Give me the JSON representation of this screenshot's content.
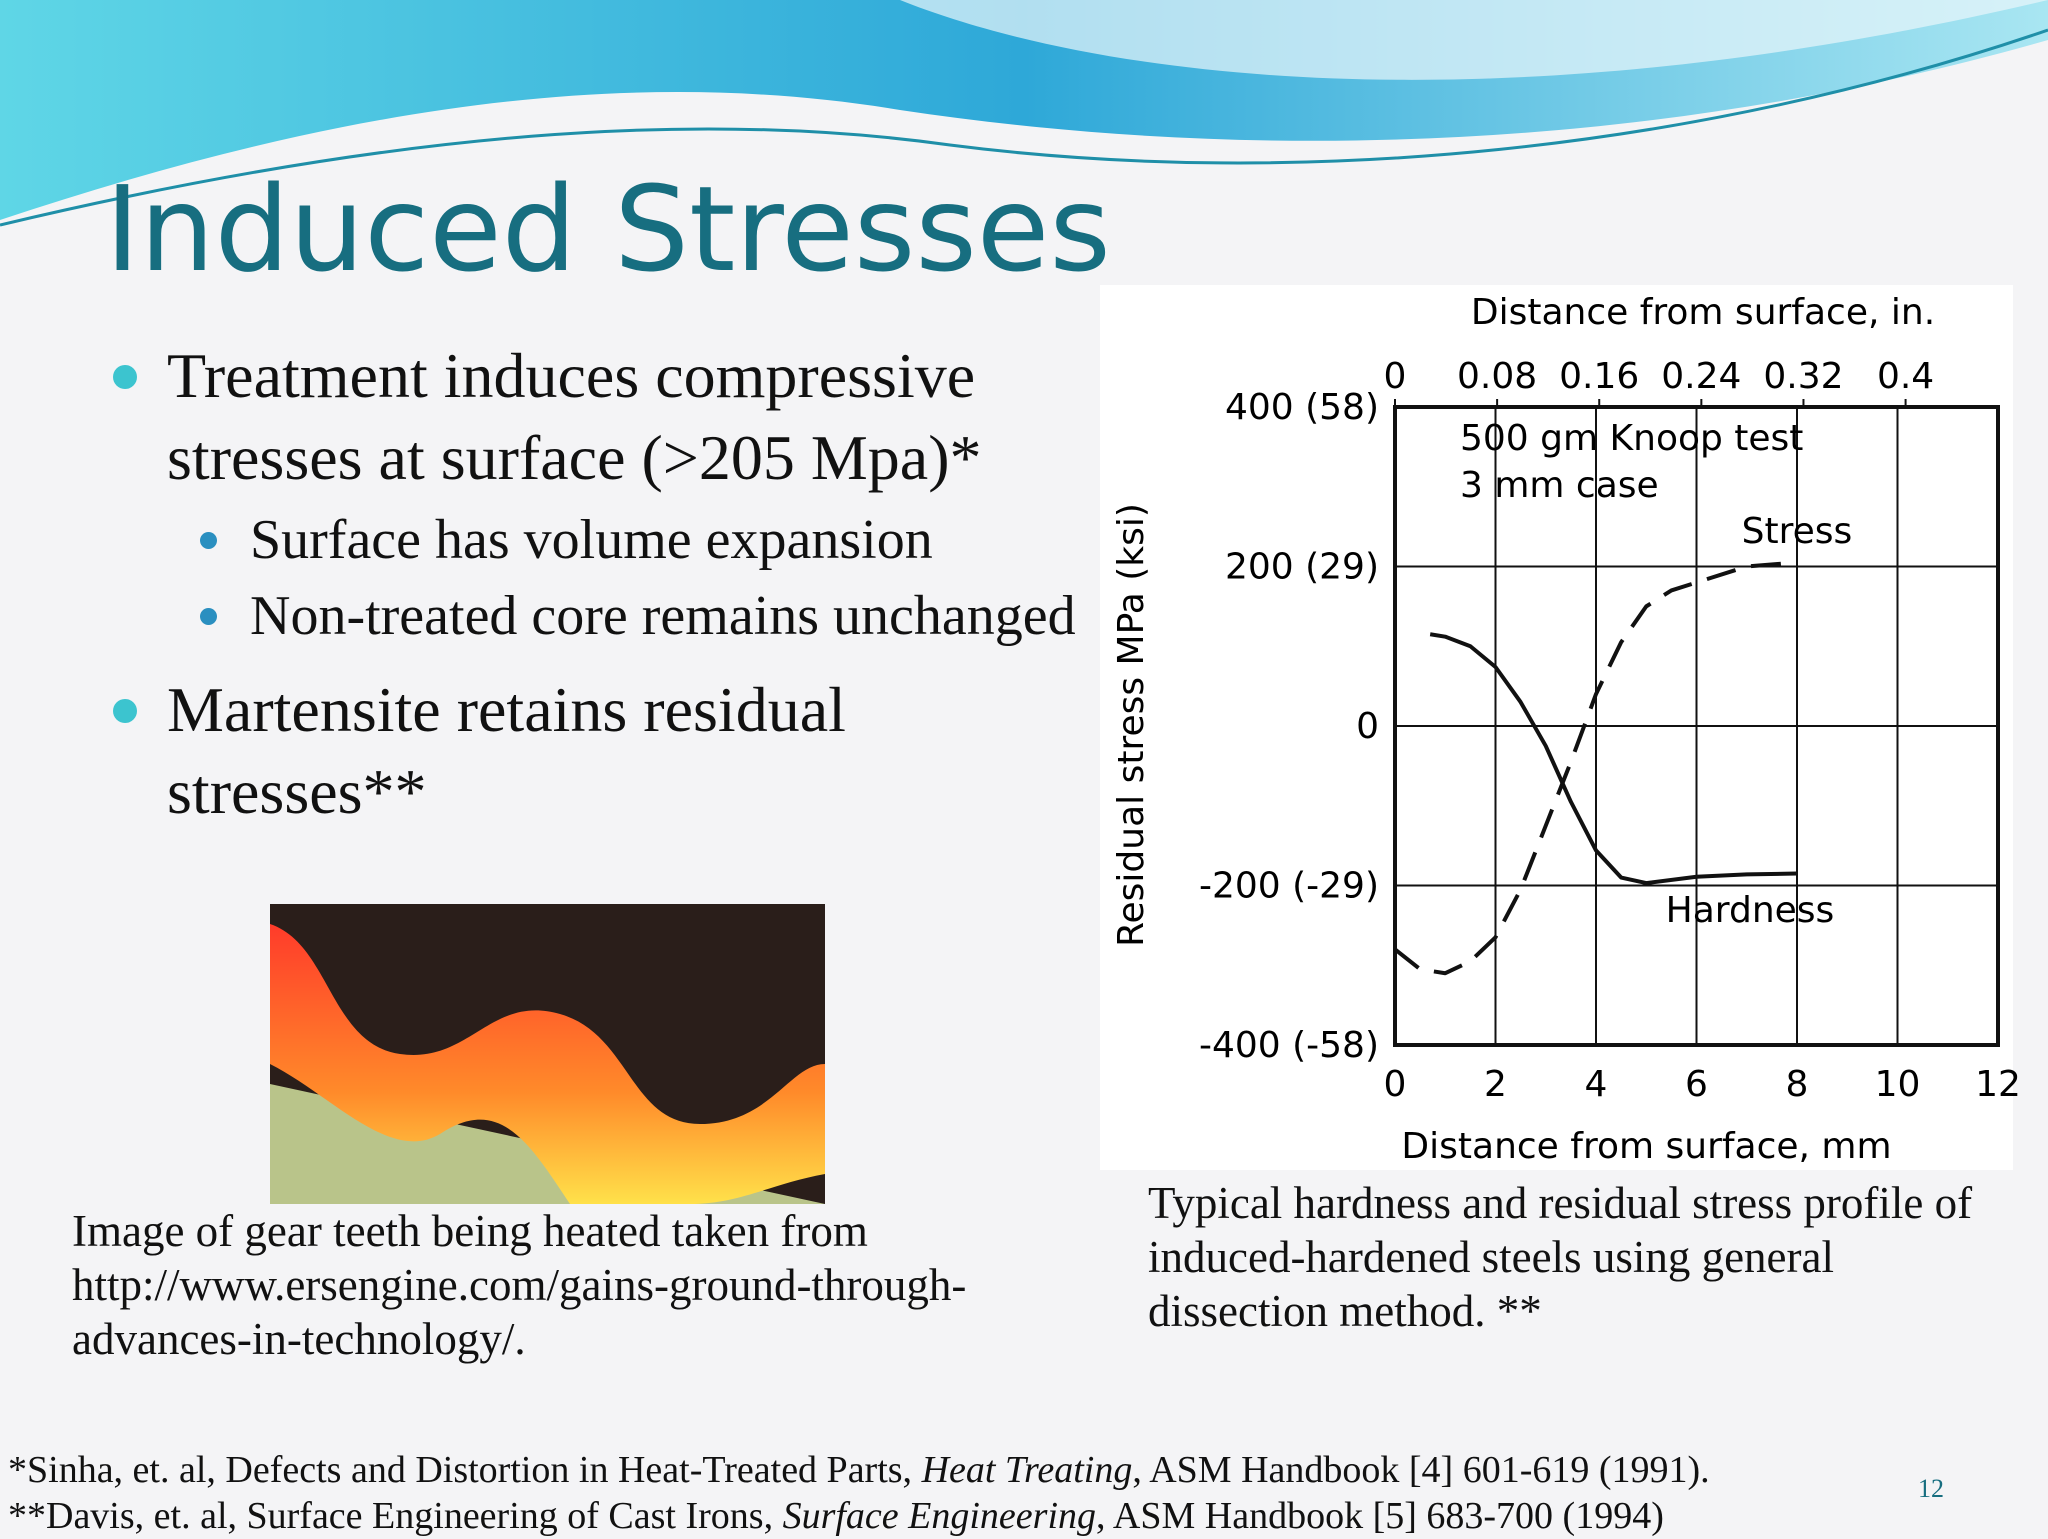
{
  "title": "Induced Stresses",
  "bullets": [
    {
      "text": "Treatment induces compressive stresses at surface (>205 Mpa)*",
      "sub": [
        "Surface has volume expansion",
        "Non-treated core remains unchanged"
      ]
    },
    {
      "text": "Martensite retains residual stresses**",
      "sub": []
    }
  ],
  "image_caption": [
    "Image of gear teeth being heated taken from",
    "http://www.ersengine.com/gains-ground-through-",
    "advances-in-technology/."
  ],
  "figure_caption": [
    "Typical hardness and residual stress profile of",
    "induced-hardened steels using general",
    "dissection method. **"
  ],
  "footnotes": [
    [
      "*Sinha, et. al, Defects and Distortion in Heat-Treated Parts, ",
      "Heat Treating",
      ", ASM Handbook [4] 601-619 (1991)."
    ],
    [
      "**Davis, et. al, Surface Engineering of Cast Irons, ",
      "Surface Engineering",
      ", ASM Handbook [5] 683-700 (1994)"
    ]
  ],
  "page_number": "12",
  "chart_data": {
    "type": "line",
    "xlabel": "Distance from surface, mm",
    "x2label": "Distance from surface, in.",
    "ylabel": "Residual stress MPa (ksi)",
    "xlim": [
      0,
      12
    ],
    "xticks": [
      0,
      2,
      4,
      6,
      8,
      10,
      12
    ],
    "x2lim": [
      0,
      0.4724
    ],
    "x2ticks": [
      0,
      0.08,
      0.16,
      0.24,
      0.32,
      0.4
    ],
    "ylim": [
      -400,
      400
    ],
    "yticks": [
      {
        "value": -400,
        "label": "-400 (-58)"
      },
      {
        "value": -200,
        "label": "-200 (-29)"
      },
      0,
      {
        "value": 200,
        "label": "200 (29)"
      },
      {
        "value": 400,
        "label": "400 (58)"
      }
    ],
    "grid": true,
    "annotations": [
      "500 gm Knoop test",
      "3 mm case"
    ],
    "series": [
      {
        "name": "Stress",
        "color": "#111111",
        "dashed": true,
        "x": [
          0,
          0.5,
          1,
          1.5,
          2,
          2.5,
          3,
          3.5,
          4,
          4.5,
          5,
          5.5,
          6,
          7,
          8
        ],
        "values": [
          -280,
          -305,
          -310,
          -295,
          -265,
          -205,
          -125,
          -45,
          40,
          105,
          150,
          170,
          180,
          200,
          205
        ]
      },
      {
        "name": "Hardness",
        "color": "#111111",
        "dashed": false,
        "x": [
          0.7,
          1,
          1.5,
          2,
          2.5,
          3,
          3.5,
          4,
          4.5,
          5,
          6,
          7,
          8
        ],
        "values": [
          115,
          112,
          100,
          74,
          30,
          -25,
          -95,
          -156,
          -190,
          -197,
          -189,
          -186,
          -185
        ]
      }
    ]
  }
}
